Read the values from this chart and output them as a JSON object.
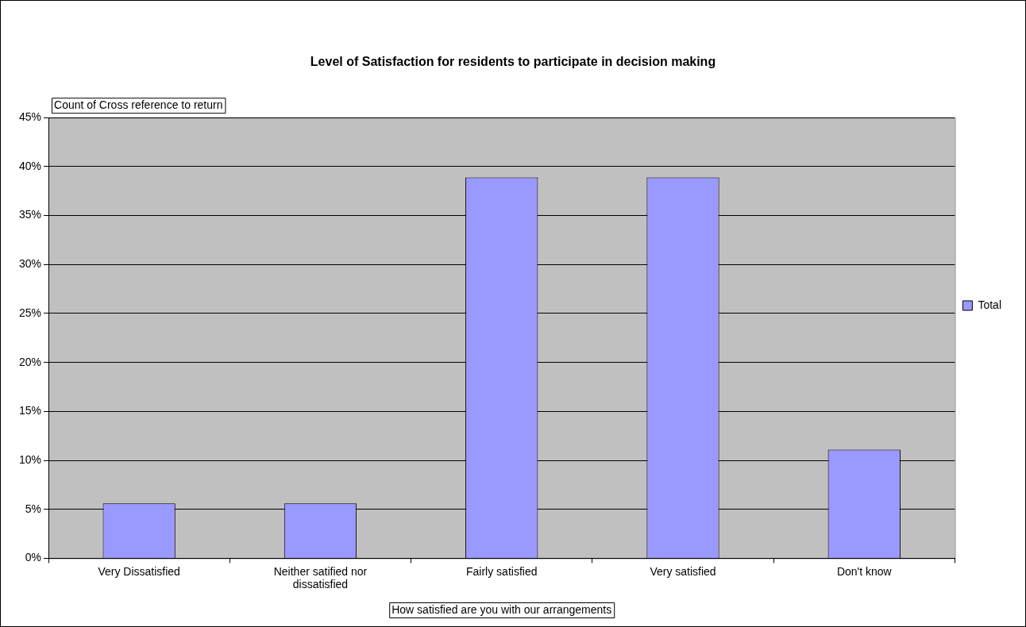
{
  "chart_data": {
    "type": "bar",
    "title": "Level of Satisfaction for residents to participate in decision making",
    "xlabel": "How satisfied are you with our arrangements",
    "ylabel": "Count of Cross reference to return",
    "categories": [
      "Very Dissatisfied",
      "Neither satified nor dissatisfied",
      "Fairly satisfied",
      "Very satisfied",
      "Don't know"
    ],
    "series": [
      {
        "name": "Total",
        "color": "#9999ff",
        "values": [
          5.6,
          5.6,
          38.9,
          38.9,
          11.1
        ]
      }
    ],
    "ylim": [
      0,
      45
    ],
    "yticks": [
      {
        "value": 0,
        "label": "0%"
      },
      {
        "value": 5,
        "label": "5%"
      },
      {
        "value": 10,
        "label": "10%"
      },
      {
        "value": 15,
        "label": "15%"
      },
      {
        "value": 20,
        "label": "20%"
      },
      {
        "value": 25,
        "label": "25%"
      },
      {
        "value": 30,
        "label": "30%"
      },
      {
        "value": 35,
        "label": "35%"
      },
      {
        "value": 40,
        "label": "40%"
      },
      {
        "value": 45,
        "label": "45%"
      }
    ],
    "grid": "y",
    "legend": "right"
  }
}
